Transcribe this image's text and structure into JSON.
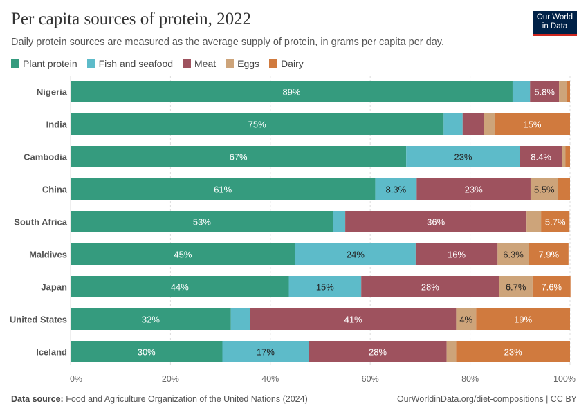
{
  "title": "Per capita sources of protein, 2022",
  "subtitle": "Daily protein sources are measured as the average supply of protein, in grams per capita per day.",
  "logo": {
    "line1": "Our World",
    "line2": "in Data"
  },
  "footer": {
    "source_label": "Data source:",
    "source": "Food and Agriculture Organization of the United Nations (2024)",
    "url": "OurWorldinData.org/diet-compositions | CC BY"
  },
  "chart_data": {
    "type": "bar",
    "orientation": "horizontal",
    "stacked": "percent",
    "legend_position": "top-left",
    "grid": true,
    "xlim": [
      0,
      100
    ],
    "xticks": [
      "0%",
      "20%",
      "40%",
      "60%",
      "80%",
      "100%"
    ],
    "categories": [
      "Nigeria",
      "India",
      "Cambodia",
      "China",
      "South Africa",
      "Maldives",
      "Japan",
      "United States",
      "Iceland"
    ],
    "series": [
      {
        "name": "Plant protein",
        "color": "#359B7E",
        "values": [
          88.5,
          74.7,
          67.2,
          61.0,
          52.6,
          45.0,
          43.7,
          32.1,
          30.4
        ],
        "labels": [
          "89%",
          "75%",
          "67%",
          "61%",
          "53%",
          "45%",
          "44%",
          "32%",
          "30%"
        ]
      },
      {
        "name": "Fish and seafood",
        "color": "#5DBBC9",
        "values": [
          3.5,
          3.8,
          22.8,
          8.3,
          2.4,
          24.1,
          14.5,
          3.9,
          17.3
        ],
        "labels": [
          null,
          null,
          "23%",
          "8.3%",
          null,
          "24%",
          "15%",
          null,
          "17%"
        ]
      },
      {
        "name": "Meat",
        "color": "#9E525E",
        "values": [
          5.8,
          4.3,
          8.4,
          22.8,
          36.3,
          16.4,
          27.6,
          41.2,
          27.6
        ],
        "labels": [
          "5.8%",
          null,
          "8.4%",
          "23%",
          "36%",
          "16%",
          "28%",
          "41%",
          "28%"
        ]
      },
      {
        "name": "Eggs",
        "color": "#CDA47A",
        "values": [
          1.6,
          2.1,
          0.7,
          5.5,
          2.9,
          6.3,
          6.7,
          4.0,
          1.9
        ],
        "labels": [
          null,
          null,
          null,
          "5.5%",
          null,
          "6.3%",
          "6.7%",
          "4%",
          null
        ]
      },
      {
        "name": "Dairy",
        "color": "#D07A3E",
        "values": [
          0.6,
          15.1,
          0.9,
          2.4,
          5.7,
          7.9,
          7.6,
          18.8,
          22.8
        ],
        "labels": [
          null,
          "15%",
          null,
          null,
          "5.7%",
          "7.9%",
          "7.6%",
          "19%",
          "23%"
        ]
      }
    ]
  }
}
